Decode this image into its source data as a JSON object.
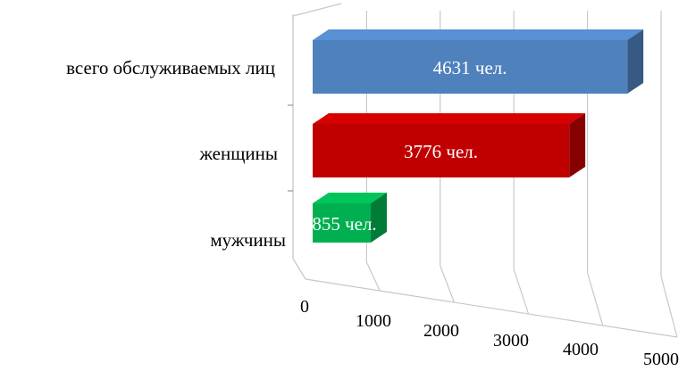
{
  "chart_data": {
    "type": "bar",
    "orientation": "horizontal",
    "style": "3d",
    "categories": [
      "всего обслуживаемых лиц",
      "женщины",
      "мужчины"
    ],
    "values": [
      4631,
      3776,
      855
    ],
    "data_labels": [
      "4631 чел.",
      "3776 чел.",
      "855 чел."
    ],
    "colors": [
      "#4F81BD",
      "#C00000",
      "#00B050"
    ],
    "x_ticks": [
      "0",
      "1000",
      "2000",
      "3000",
      "4000",
      "5000"
    ],
    "xlim": [
      0,
      5000
    ],
    "grid": true,
    "legend": "none"
  }
}
